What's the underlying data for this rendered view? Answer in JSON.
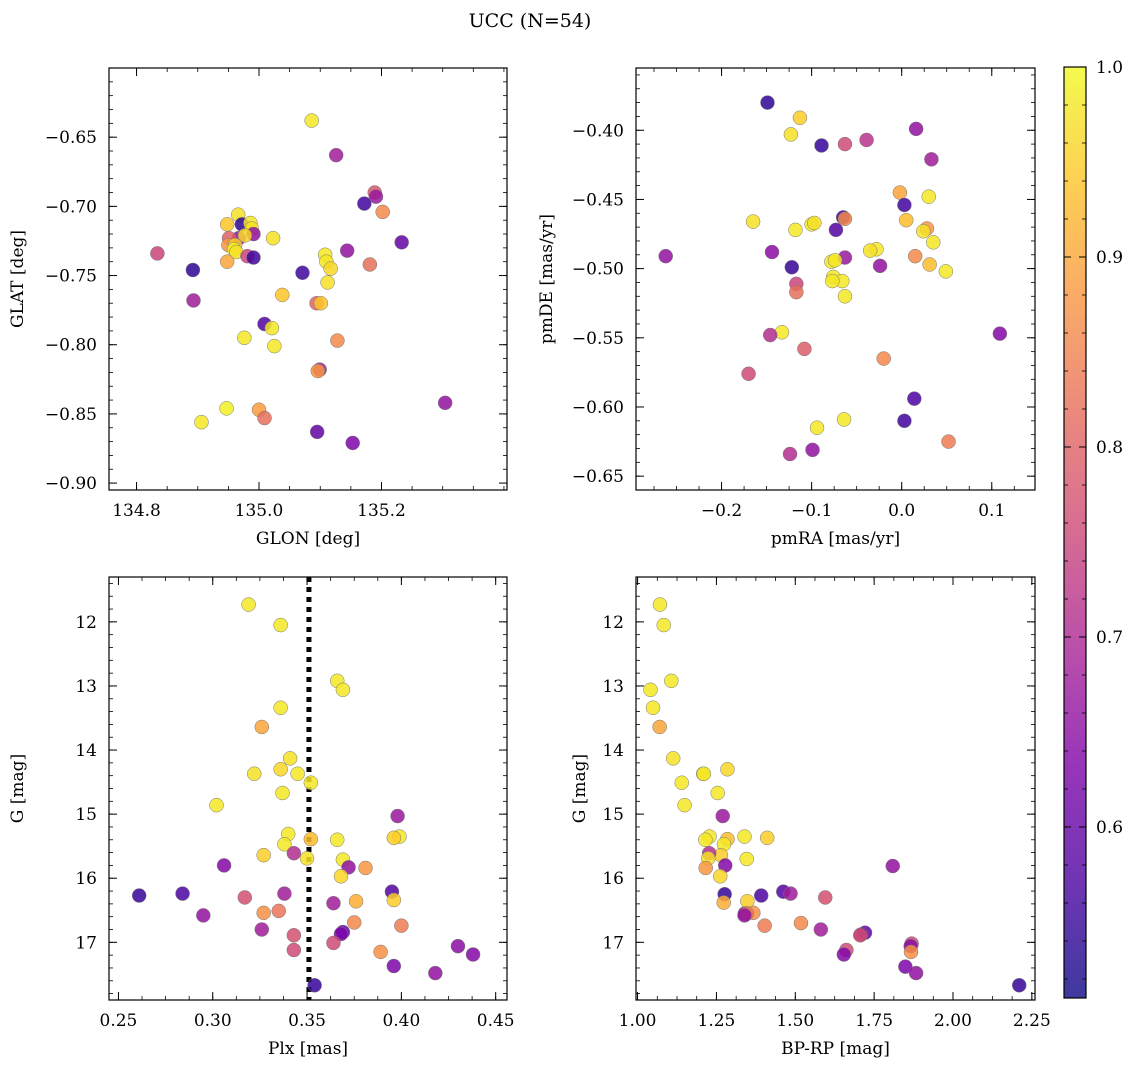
{
  "figure": {
    "title": "UCC (N=54)"
  },
  "colorbar": {
    "range": [
      0.51,
      1.0
    ],
    "ticks": [
      0.6,
      0.7,
      0.8,
      0.9,
      1.0
    ],
    "tick_labels": [
      "0.6",
      "0.7",
      "0.8",
      "0.9",
      "1.0"
    ],
    "colormap": "plasma"
  },
  "chart_data": [
    {
      "type": "scatter",
      "xlabel": "GLON [deg]",
      "ylabel": "GLAT [deg]",
      "xlim": [
        134.755,
        135.405
      ],
      "ylim": [
        -0.905,
        -0.6
      ],
      "yinverted": false,
      "xticks": [
        134.8,
        135.0,
        135.2
      ],
      "xtick_labels": [
        "134.8",
        "135.0",
        "135.2"
      ],
      "yticks": [
        -0.9,
        -0.85,
        -0.8,
        -0.75,
        -0.7,
        -0.65
      ],
      "ytick_labels": [
        "−0.90",
        "−0.85",
        "−0.80",
        "−0.75",
        "−0.70",
        "−0.65"
      ],
      "points": [
        [
          135.086,
          -0.638,
          0.98
        ],
        [
          135.126,
          -0.663,
          0.68
        ],
        [
          135.202,
          -0.704,
          0.86
        ],
        [
          135.189,
          -0.69,
          0.78
        ],
        [
          135.191,
          -0.693,
          0.67
        ],
        [
          135.172,
          -0.698,
          0.56
        ],
        [
          135.233,
          -0.726,
          0.6
        ],
        [
          134.834,
          -0.734,
          0.75
        ],
        [
          134.892,
          -0.746,
          0.54
        ],
        [
          134.893,
          -0.768,
          0.68
        ],
        [
          134.966,
          -0.706,
          0.97
        ],
        [
          134.972,
          -0.713,
          0.54
        ],
        [
          134.948,
          -0.713,
          0.94
        ],
        [
          134.986,
          -0.712,
          0.98
        ],
        [
          134.988,
          -0.716,
          0.97
        ],
        [
          134.991,
          -0.72,
          0.66
        ],
        [
          134.967,
          -0.723,
          0.66
        ],
        [
          134.951,
          -0.723,
          0.8
        ],
        [
          134.95,
          -0.728,
          0.88
        ],
        [
          134.961,
          -0.728,
          0.95
        ],
        [
          134.959,
          -0.731,
          0.99
        ],
        [
          134.963,
          -0.733,
          0.97
        ],
        [
          135.023,
          -0.723,
          0.97
        ],
        [
          134.977,
          -0.721,
          0.96
        ],
        [
          134.981,
          -0.736,
          0.75
        ],
        [
          134.991,
          -0.737,
          0.56
        ],
        [
          134.948,
          -0.74,
          0.9
        ],
        [
          135.108,
          -0.735,
          0.98
        ],
        [
          135.11,
          -0.74,
          0.98
        ],
        [
          135.117,
          -0.745,
          0.96
        ],
        [
          135.144,
          -0.732,
          0.66
        ],
        [
          135.181,
          -0.742,
          0.82
        ],
        [
          135.071,
          -0.748,
          0.56
        ],
        [
          135.112,
          -0.755,
          0.97
        ],
        [
          135.038,
          -0.764,
          0.94
        ],
        [
          135.094,
          -0.77,
          0.8
        ],
        [
          135.101,
          -0.77,
          0.94
        ],
        [
          135.009,
          -0.785,
          0.58
        ],
        [
          135.021,
          -0.788,
          0.98
        ],
        [
          134.976,
          -0.795,
          0.98
        ],
        [
          135.025,
          -0.801,
          0.98
        ],
        [
          135.128,
          -0.797,
          0.86
        ],
        [
          135.099,
          -0.818,
          0.68
        ],
        [
          135.096,
          -0.819,
          0.88
        ],
        [
          135.304,
          -0.842,
          0.66
        ],
        [
          134.947,
          -0.846,
          0.99
        ],
        [
          135.0,
          -0.847,
          0.89
        ],
        [
          135.009,
          -0.853,
          0.82
        ],
        [
          134.906,
          -0.856,
          0.98
        ],
        [
          135.095,
          -0.863,
          0.6
        ],
        [
          135.153,
          -0.871,
          0.63
        ]
      ]
    },
    {
      "type": "scatter",
      "xlabel": "pmRA [mas/yr]",
      "ylabel": "pmDE [mas/yr]",
      "xlim": [
        -0.295,
        0.148
      ],
      "ylim": [
        -0.66,
        -0.355
      ],
      "yinverted": false,
      "xticks": [
        -0.2,
        -0.1,
        0.0,
        0.1
      ],
      "xtick_labels": [
        "−0.2",
        "−0.1",
        "0.0",
        "0.1"
      ],
      "yticks": [
        -0.65,
        -0.6,
        -0.55,
        -0.5,
        -0.45,
        -0.4
      ],
      "ytick_labels": [
        "−0.65",
        "−0.60",
        "−0.55",
        "−0.50",
        "−0.45",
        "−0.40"
      ],
      "points": [
        [
          -0.149,
          -0.38,
          0.54
        ],
        [
          -0.113,
          -0.391,
          0.95
        ],
        [
          0.016,
          -0.399,
          0.66
        ],
        [
          -0.123,
          -0.403,
          0.97
        ],
        [
          -0.039,
          -0.407,
          0.72
        ],
        [
          -0.089,
          -0.411,
          0.55
        ],
        [
          -0.063,
          -0.41,
          0.76
        ],
        [
          0.033,
          -0.421,
          0.68
        ],
        [
          -0.002,
          -0.445,
          0.9
        ],
        [
          0.03,
          -0.448,
          0.98
        ],
        [
          0.003,
          -0.454,
          0.56
        ],
        [
          -0.065,
          -0.463,
          0.56
        ],
        [
          -0.063,
          -0.464,
          0.86
        ],
        [
          0.005,
          -0.465,
          0.93
        ],
        [
          -0.165,
          -0.466,
          0.97
        ],
        [
          -0.1,
          -0.468,
          0.98
        ],
        [
          -0.097,
          -0.467,
          0.97
        ],
        [
          -0.118,
          -0.472,
          0.98
        ],
        [
          0.028,
          -0.471,
          0.88
        ],
        [
          0.024,
          -0.473,
          0.97
        ],
        [
          -0.073,
          -0.472,
          0.58
        ],
        [
          0.035,
          -0.481,
          0.98
        ],
        [
          -0.028,
          -0.486,
          0.98
        ],
        [
          -0.035,
          -0.487,
          0.97
        ],
        [
          -0.144,
          -0.488,
          0.65
        ],
        [
          -0.262,
          -0.491,
          0.66
        ],
        [
          0.015,
          -0.491,
          0.86
        ],
        [
          -0.063,
          -0.492,
          0.67
        ],
        [
          -0.078,
          -0.495,
          0.98
        ],
        [
          -0.074,
          -0.494,
          0.98
        ],
        [
          0.031,
          -0.497,
          0.93
        ],
        [
          -0.024,
          -0.498,
          0.66
        ],
        [
          -0.122,
          -0.499,
          0.55
        ],
        [
          0.049,
          -0.502,
          0.98
        ],
        [
          -0.076,
          -0.506,
          0.98
        ],
        [
          -0.066,
          -0.509,
          0.98
        ],
        [
          -0.077,
          -0.509,
          0.98
        ],
        [
          -0.117,
          -0.511,
          0.75
        ],
        [
          -0.117,
          -0.517,
          0.82
        ],
        [
          -0.063,
          -0.52,
          0.98
        ],
        [
          -0.133,
          -0.546,
          0.98
        ],
        [
          0.109,
          -0.547,
          0.64
        ],
        [
          -0.146,
          -0.548,
          0.71
        ],
        [
          -0.108,
          -0.558,
          0.79
        ],
        [
          -0.02,
          -0.565,
          0.86
        ],
        [
          -0.17,
          -0.576,
          0.76
        ],
        [
          0.014,
          -0.594,
          0.57
        ],
        [
          -0.064,
          -0.609,
          0.98
        ],
        [
          0.003,
          -0.61,
          0.56
        ],
        [
          -0.094,
          -0.615,
          0.98
        ],
        [
          0.052,
          -0.625,
          0.84
        ],
        [
          -0.099,
          -0.631,
          0.66
        ],
        [
          -0.124,
          -0.634,
          0.71
        ]
      ]
    },
    {
      "type": "scatter",
      "xlabel": "Plx [mas]",
      "ylabel": "G [mag]",
      "xlim": [
        0.245,
        0.456
      ],
      "ylim": [
        11.3,
        17.9
      ],
      "yinverted": true,
      "vline": {
        "x": 0.351,
        "style": "dotted",
        "color": "#000000"
      },
      "xticks": [
        0.25,
        0.3,
        0.35,
        0.4,
        0.45
      ],
      "xtick_labels": [
        "0.25",
        "0.30",
        "0.35",
        "0.40",
        "0.45"
      ],
      "yticks": [
        12,
        13,
        14,
        15,
        16,
        17
      ],
      "ytick_labels": [
        "12",
        "13",
        "14",
        "15",
        "16",
        "17"
      ],
      "points": [
        [
          0.319,
          11.73,
          0.98
        ],
        [
          0.336,
          12.05,
          0.98
        ],
        [
          0.366,
          12.92,
          0.98
        ],
        [
          0.369,
          13.06,
          0.98
        ],
        [
          0.336,
          13.34,
          0.98
        ],
        [
          0.326,
          13.64,
          0.9
        ],
        [
          0.341,
          14.13,
          0.97
        ],
        [
          0.336,
          14.3,
          0.96
        ],
        [
          0.322,
          14.37,
          0.97
        ],
        [
          0.345,
          14.37,
          0.98
        ],
        [
          0.352,
          14.51,
          0.98
        ],
        [
          0.337,
          14.67,
          0.98
        ],
        [
          0.302,
          14.86,
          0.98
        ],
        [
          0.398,
          15.03,
          0.67
        ],
        [
          0.399,
          15.35,
          0.98
        ],
        [
          0.396,
          15.37,
          0.95
        ],
        [
          0.34,
          15.31,
          0.98
        ],
        [
          0.352,
          15.39,
          0.93
        ],
        [
          0.338,
          15.47,
          0.98
        ],
        [
          0.366,
          15.4,
          0.98
        ],
        [
          0.327,
          15.64,
          0.95
        ],
        [
          0.343,
          15.61,
          0.71
        ],
        [
          0.35,
          15.69,
          0.97
        ],
        [
          0.369,
          15.71,
          0.98
        ],
        [
          0.306,
          15.8,
          0.64
        ],
        [
          0.372,
          15.83,
          0.66
        ],
        [
          0.381,
          15.84,
          0.88
        ],
        [
          0.368,
          15.97,
          0.96
        ],
        [
          0.395,
          16.21,
          0.58
        ],
        [
          0.261,
          16.27,
          0.55
        ],
        [
          0.284,
          16.24,
          0.57
        ],
        [
          0.338,
          16.24,
          0.68
        ],
        [
          0.317,
          16.3,
          0.77
        ],
        [
          0.396,
          16.34,
          0.95
        ],
        [
          0.376,
          16.36,
          0.91
        ],
        [
          0.364,
          16.39,
          0.68
        ],
        [
          0.327,
          16.54,
          0.87
        ],
        [
          0.335,
          16.51,
          0.83
        ],
        [
          0.295,
          16.58,
          0.66
        ],
        [
          0.375,
          16.69,
          0.86
        ],
        [
          0.4,
          16.74,
          0.84
        ],
        [
          0.326,
          16.8,
          0.68
        ],
        [
          0.369,
          16.84,
          0.6
        ],
        [
          0.368,
          16.87,
          0.63
        ],
        [
          0.343,
          16.89,
          0.77
        ],
        [
          0.364,
          17.01,
          0.76
        ],
        [
          0.43,
          17.06,
          0.65
        ],
        [
          0.343,
          17.12,
          0.76
        ],
        [
          0.389,
          17.15,
          0.87
        ],
        [
          0.438,
          17.19,
          0.64
        ],
        [
          0.396,
          17.37,
          0.63
        ],
        [
          0.418,
          17.48,
          0.66
        ],
        [
          0.354,
          17.67,
          0.55
        ]
      ]
    },
    {
      "type": "scatter",
      "xlabel": "BP-RP [mag]",
      "ylabel": "G [mag]",
      "xlim": [
        0.995,
        2.26
      ],
      "ylim": [
        11.3,
        17.9
      ],
      "yinverted": true,
      "xticks": [
        1.0,
        1.25,
        1.5,
        1.75,
        2.0,
        2.25
      ],
      "xtick_labels": [
        "1.00",
        "1.25",
        "1.50",
        "1.75",
        "2.00",
        "2.25"
      ],
      "yticks": [
        12,
        13,
        14,
        15,
        16,
        17
      ],
      "ytick_labels": [
        "12",
        "13",
        "14",
        "15",
        "16",
        "17"
      ],
      "points": [
        [
          1.071,
          11.73,
          0.98
        ],
        [
          1.083,
          12.05,
          0.98
        ],
        [
          1.107,
          12.92,
          0.98
        ],
        [
          1.041,
          13.06,
          0.98
        ],
        [
          1.049,
          13.34,
          0.98
        ],
        [
          1.07,
          13.64,
          0.9
        ],
        [
          1.113,
          14.13,
          0.97
        ],
        [
          1.285,
          14.3,
          0.96
        ],
        [
          1.208,
          14.37,
          0.97
        ],
        [
          1.21,
          14.37,
          0.98
        ],
        [
          1.14,
          14.51,
          0.98
        ],
        [
          1.254,
          14.67,
          0.98
        ],
        [
          1.149,
          14.86,
          0.98
        ],
        [
          1.27,
          15.03,
          0.67
        ],
        [
          1.228,
          15.35,
          0.98
        ],
        [
          1.411,
          15.37,
          0.95
        ],
        [
          1.339,
          15.35,
          0.98
        ],
        [
          1.285,
          15.39,
          0.93
        ],
        [
          1.274,
          15.47,
          0.98
        ],
        [
          1.215,
          15.4,
          0.98
        ],
        [
          1.264,
          15.64,
          0.95
        ],
        [
          1.227,
          15.61,
          0.71
        ],
        [
          1.224,
          15.69,
          0.97
        ],
        [
          1.346,
          15.7,
          0.98
        ],
        [
          1.278,
          15.8,
          0.64
        ],
        [
          1.809,
          15.81,
          0.66
        ],
        [
          1.216,
          15.84,
          0.88
        ],
        [
          1.262,
          15.97,
          0.96
        ],
        [
          1.462,
          16.21,
          0.58
        ],
        [
          1.276,
          16.25,
          0.55
        ],
        [
          1.392,
          16.27,
          0.57
        ],
        [
          1.485,
          16.24,
          0.68
        ],
        [
          1.595,
          16.3,
          0.77
        ],
        [
          1.348,
          16.36,
          0.95
        ],
        [
          1.273,
          16.38,
          0.91
        ],
        [
          1.34,
          16.55,
          0.68
        ],
        [
          1.367,
          16.54,
          0.87
        ],
        [
          1.346,
          16.55,
          0.83
        ],
        [
          1.339,
          16.58,
          0.66
        ],
        [
          1.518,
          16.7,
          0.86
        ],
        [
          1.403,
          16.74,
          0.84
        ],
        [
          1.581,
          16.8,
          0.68
        ],
        [
          1.721,
          16.85,
          0.6
        ],
        [
          1.708,
          16.88,
          0.63
        ],
        [
          1.706,
          16.89,
          0.77
        ],
        [
          1.869,
          17.02,
          0.76
        ],
        [
          1.866,
          17.06,
          0.65
        ],
        [
          1.662,
          17.12,
          0.76
        ],
        [
          1.867,
          17.15,
          0.87
        ],
        [
          1.654,
          17.19,
          0.64
        ],
        [
          1.849,
          17.38,
          0.63
        ],
        [
          1.883,
          17.48,
          0.66
        ],
        [
          2.21,
          17.67,
          0.55
        ]
      ]
    }
  ]
}
